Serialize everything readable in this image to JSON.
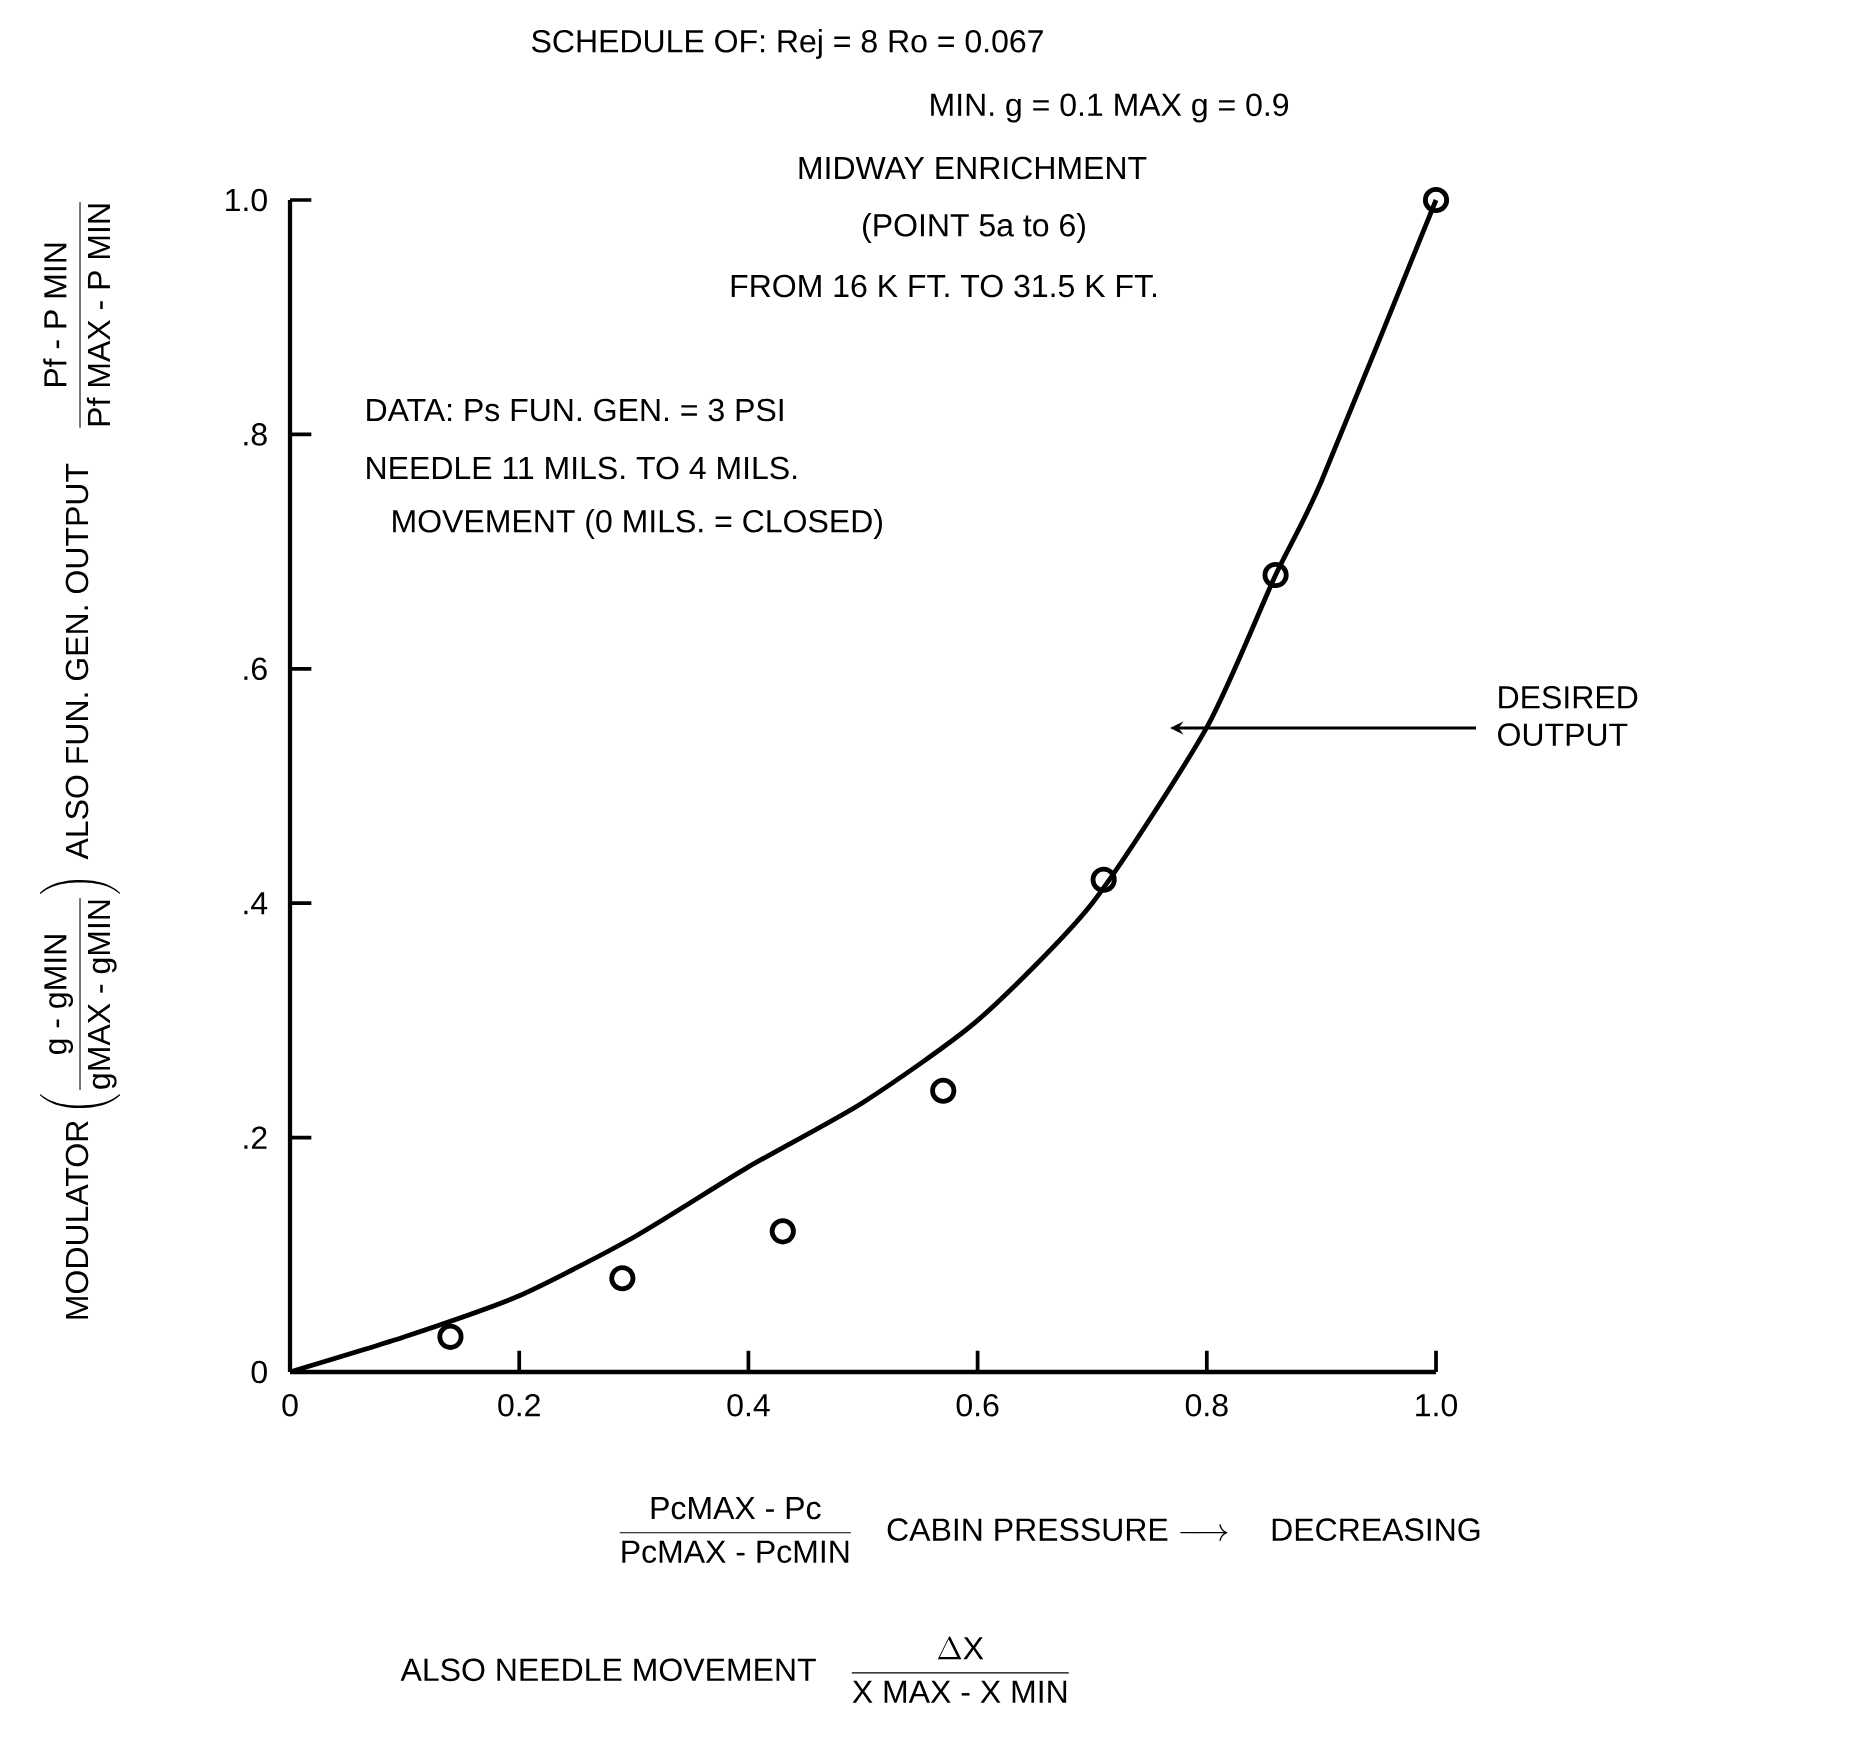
{
  "chart_data": {
    "type": "line",
    "xlabel": "\\frac{\\mbox{PcMAX - Pc}}{\\mbox{PcMAX - PcMIN}}\\quad\\mbox{CABIN PRESSURE}\\longrightarrow\\quad\\mbox{DECREASING}",
    "ylabel": "\\mbox{MODULATOR}\\left(\\frac{\\mbox{g - gMIN}}{\\mbox{gMAX - gMIN}}\\right)\\ \\mbox{ALSO FUN. GEN. OUTPUT}\\quad\\frac{\\mbox{Pf - P MIN}}{\\mbox{Pf MAX - P MIN}}",
    "xlim": [
      0,
      1
    ],
    "ylim": [
      0,
      1
    ],
    "xticks": [
      0,
      0.2,
      0.4,
      0.6,
      0.8,
      {
        "value": 1,
        "label": "1.0"
      }
    ],
    "yticks": [
      0,
      {
        "value": 0.2,
        "label": ".2"
      },
      {
        "value": 0.4,
        "label": ".4"
      },
      {
        "value": 0.6,
        "label": ".6"
      },
      {
        "value": 0.8,
        "label": ".8"
      },
      {
        "value": 1,
        "label": "1.0"
      }
    ],
    "series": [
      {
        "color": "#000000",
        "marker": "none",
        "x": [
          0,
          0.1,
          0.2,
          0.3,
          0.4,
          0.5,
          0.6,
          0.7,
          0.8,
          0.86,
          0.9,
          1.0
        ],
        "values": [
          0,
          0.03,
          0.065,
          0.115,
          0.175,
          0.23,
          0.3,
          0.4,
          0.55,
          0.68,
          0.76,
          1.0
        ]
      },
      {
        "type": "scatter",
        "color": "#000000",
        "marker": "circle",
        "x": [
          0.14,
          0.29,
          0.43,
          0.57,
          0.71,
          0.86,
          1.0
        ],
        "values": [
          0.03,
          0.08,
          0.12,
          0.24,
          0.42,
          0.68,
          1.0
        ]
      }
    ],
    "annotations": [
      "SCHEDULE OF:  Rej = 8  Ro = 0.067",
      "MIN. g = 0.1  MAX g = 0.9",
      "MIDWAY ENRICHMENT",
      "(POINT 5a to 6)",
      "FROM 16 K FT. TO 31.5 K FT.",
      "DATA:  Ps FUN. GEN. = 3 PSI",
      "NEEDLE   11 MILS. TO 4 MILS.",
      "MOVEMENT (0 MILS. = CLOSED)",
      "DESIRED OUTPUT",
      "\\mbox{ALSO NEEDLE MOVEMENT}\\quad\\frac{\\Delta\\mbox{X}}{\\mbox{X MAX - X MIN}}"
    ]
  }
}
